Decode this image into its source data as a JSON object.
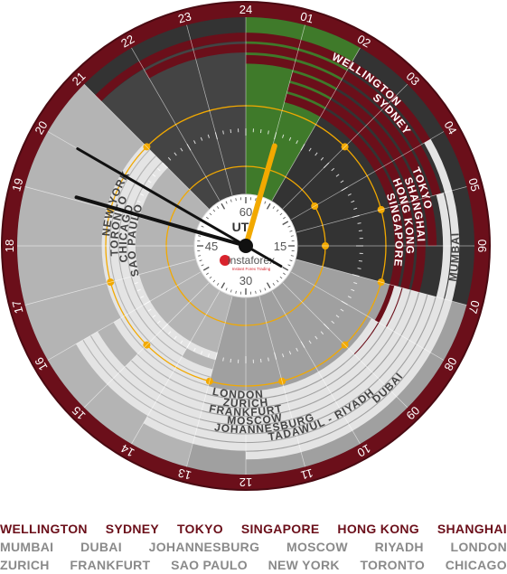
{
  "dial": {
    "hours": [
      "24",
      "01",
      "02",
      "03",
      "04",
      "05",
      "06",
      "07",
      "08",
      "09",
      "10",
      "11",
      "12",
      "13",
      "14",
      "15",
      "16",
      "17",
      "18",
      "19",
      "20",
      "21",
      "22",
      "23"
    ],
    "minute_labels": [
      "60",
      "15",
      "30",
      "45"
    ],
    "center_label": "UT",
    "brand": "instaforex",
    "brand_sub": "Instant Forex Trading"
  },
  "clock_time_minutes": 5,
  "clock_time_hour": 1.07,
  "colors": {
    "bezel": "#6b0f1a",
    "face_dark": "#333333",
    "green": "#3f7a2a",
    "burgundy": "#6b0f1a",
    "light_band": "#e4e4e4",
    "gray_fill": "#b4b4b4",
    "orange": "#f2a900"
  },
  "sessions_red": [
    {
      "name": "WELLINGTON",
      "start": 21,
      "end": 4
    },
    {
      "name": "SYDNEY",
      "start": 22,
      "end": 5
    },
    {
      "name": "TOKYO",
      "start": 0,
      "end": 6
    },
    {
      "name": "SHANGHAI",
      "start": 1,
      "end": 7
    },
    {
      "name": "HONG KONG",
      "start": 1,
      "end": 8
    },
    {
      "name": "SINGAPORE",
      "start": 1,
      "end": 9
    }
  ],
  "sessions_light": [
    {
      "name": "MUMBAI",
      "start": 4,
      "end": 12
    },
    {
      "name": "DUBAI",
      "start": 5,
      "end": 14
    },
    {
      "name": "TADAWUL - RIYADH",
      "start": 7,
      "end": 16
    },
    {
      "name": "JOHANNESBURG",
      "start": 7,
      "end": 16
    },
    {
      "name": "MOSCOW",
      "start": 7,
      "end": 16
    },
    {
      "name": "FRANKFURT",
      "start": 7,
      "end": 15
    },
    {
      "name": "ZURICH",
      "start": 7,
      "end": 15
    },
    {
      "name": "LONDON",
      "start": 8,
      "end": 16
    },
    {
      "name": "NEW YORK",
      "start": 13,
      "end": 21
    },
    {
      "name": "TORONTO",
      "start": 13,
      "end": 21
    },
    {
      "name": "CHICAGO",
      "start": 14,
      "end": 21
    },
    {
      "name": "SAO PAULO",
      "start": 13,
      "end": 21
    }
  ],
  "legend": {
    "row1": [
      "WELLINGTON",
      "SYDNEY",
      "TOKYO",
      "SINGAPORE",
      "HONG KONG",
      "SHANGHAI"
    ],
    "row2": [
      "MUMBAI",
      "DUBAI",
      "JOHANNESBURG",
      "MOSCOW",
      "RIYADH",
      "LONDON"
    ],
    "row3": [
      "ZURICH",
      "FRANKFURT",
      "SAO PAULO",
      "NEW YORK",
      "TORONTO",
      "CHICAGO"
    ]
  }
}
